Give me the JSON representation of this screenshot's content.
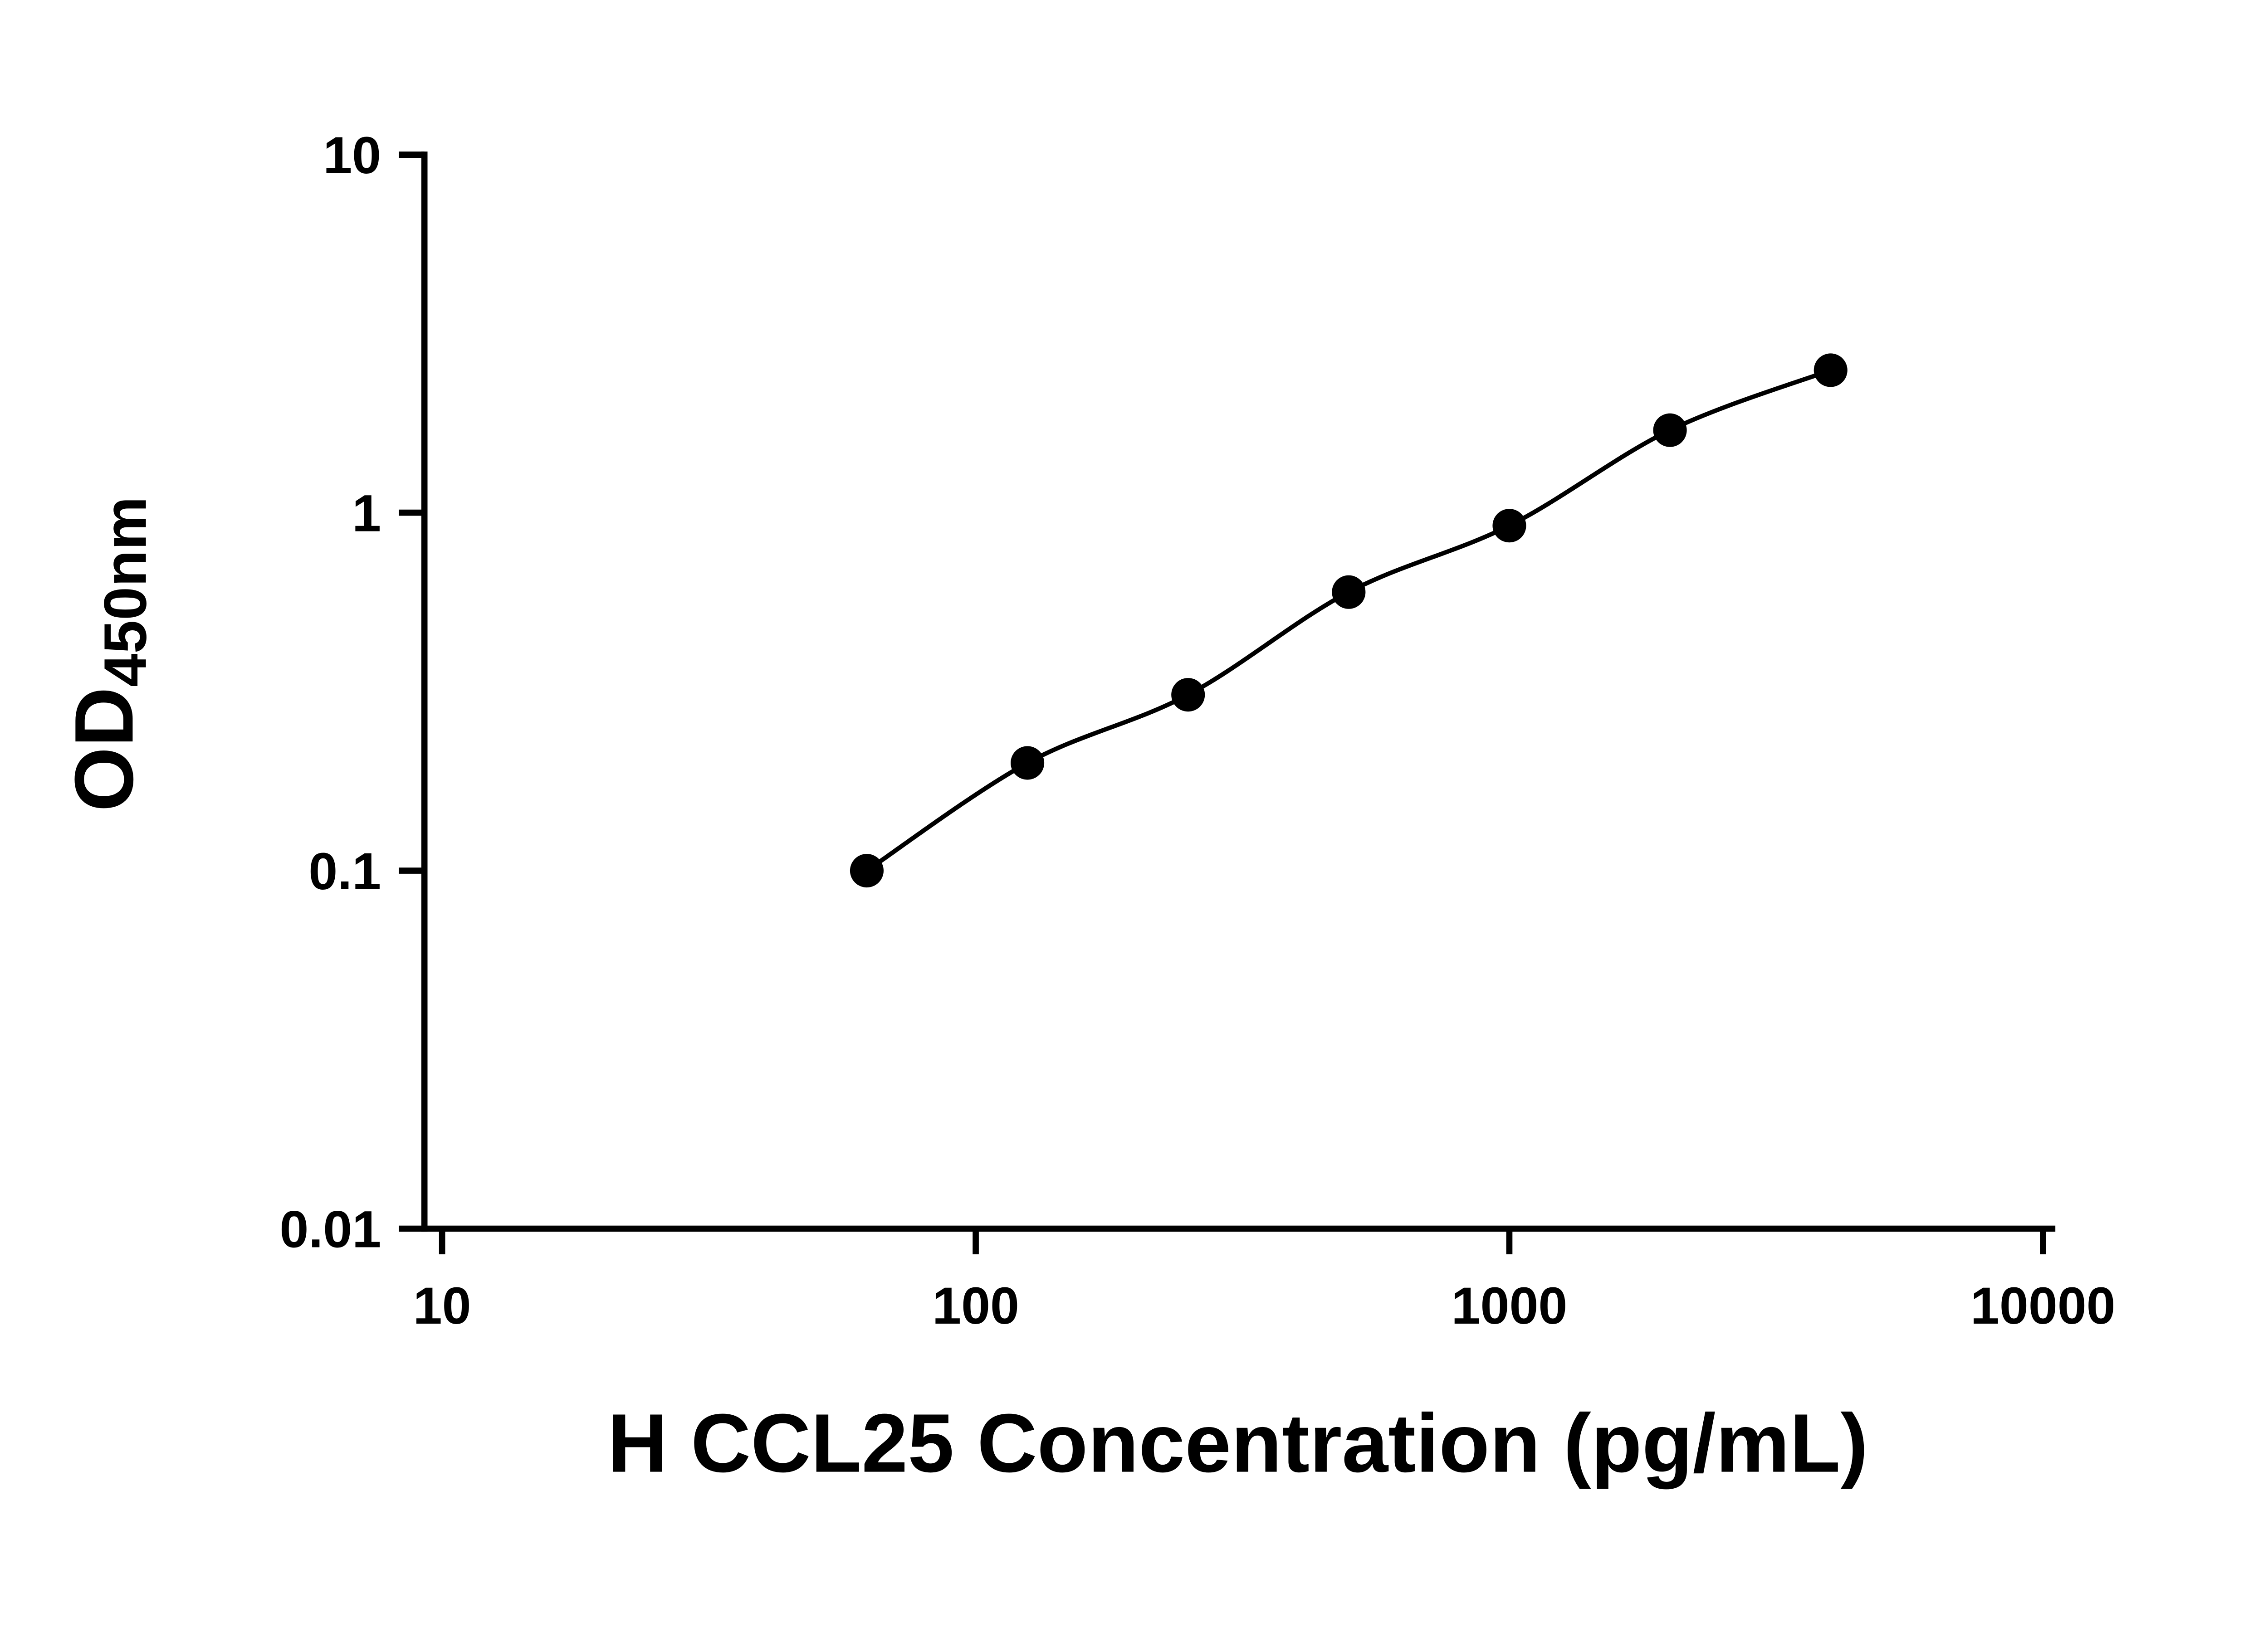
{
  "chart_data": {
    "type": "scatter",
    "title": "",
    "xlabel": "H CCL25 Concentration (pg/mL)",
    "ylabel_main": "OD",
    "ylabel_sub": "450nm",
    "x": [
      62.5,
      125,
      250,
      500,
      1000,
      2000,
      4000
    ],
    "y": [
      0.1,
      0.2,
      0.31,
      0.6,
      0.92,
      1.7,
      2.5
    ],
    "xscale": "log",
    "yscale": "log",
    "xlim": [
      10,
      10000
    ],
    "ylim": [
      0.01,
      10
    ],
    "x_ticks": [
      10,
      100,
      1000,
      10000
    ],
    "x_tick_labels": [
      "10",
      "100",
      "1000",
      "10000"
    ],
    "y_ticks": [
      0.01,
      0.1,
      1,
      10
    ],
    "y_tick_labels": [
      "0.01",
      "0.1",
      "1",
      "10"
    ],
    "grid": false,
    "legend": "none",
    "curve": "smooth fit line through points",
    "marker": "filled circle",
    "marker_color": "#000000",
    "line_color": "#000000",
    "background_color": "#ffffff"
  }
}
